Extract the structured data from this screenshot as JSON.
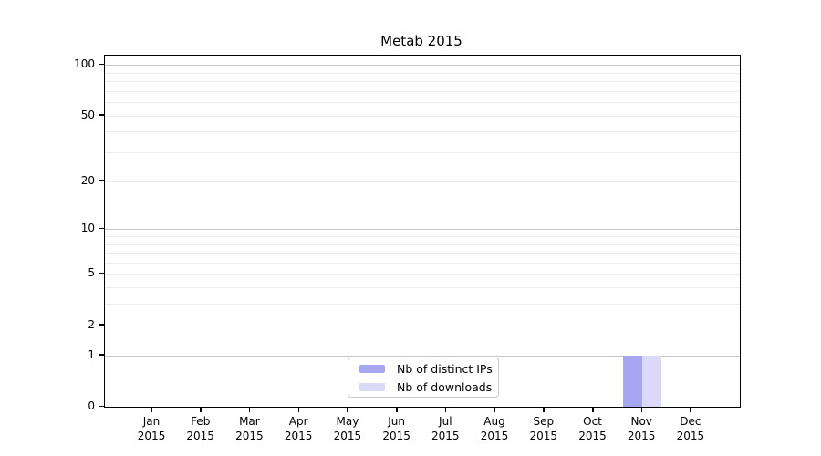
{
  "chart_data": {
    "type": "bar",
    "title": "Metab 2015",
    "x_year": "2015",
    "categories": [
      "Jan",
      "Feb",
      "Mar",
      "Apr",
      "May",
      "Jun",
      "Jul",
      "Aug",
      "Sep",
      "Oct",
      "Nov",
      "Dec"
    ],
    "series": [
      {
        "name": "Nb of distinct IPs",
        "color": "#a6a6f2",
        "values": [
          0,
          0,
          0,
          0,
          0,
          0,
          0,
          0,
          0,
          0,
          1,
          0
        ]
      },
      {
        "name": "Nb of downloads",
        "color": "#dadaf8",
        "values": [
          0,
          0,
          0,
          0,
          0,
          0,
          0,
          0,
          0,
          0,
          1,
          0
        ]
      }
    ],
    "y_scale": "log10(1+x)",
    "ylim": [
      0,
      112
    ],
    "y_ticks": [
      0,
      1,
      2,
      5,
      10,
      20,
      50,
      100
    ],
    "y_gridlines": {
      "major": [
        1,
        10,
        100
      ],
      "minor": [
        2,
        3,
        4,
        5,
        6,
        7,
        8,
        9,
        20,
        30,
        40,
        50,
        60,
        70,
        80,
        90
      ]
    },
    "grid": true,
    "legend_position": "lower center"
  }
}
